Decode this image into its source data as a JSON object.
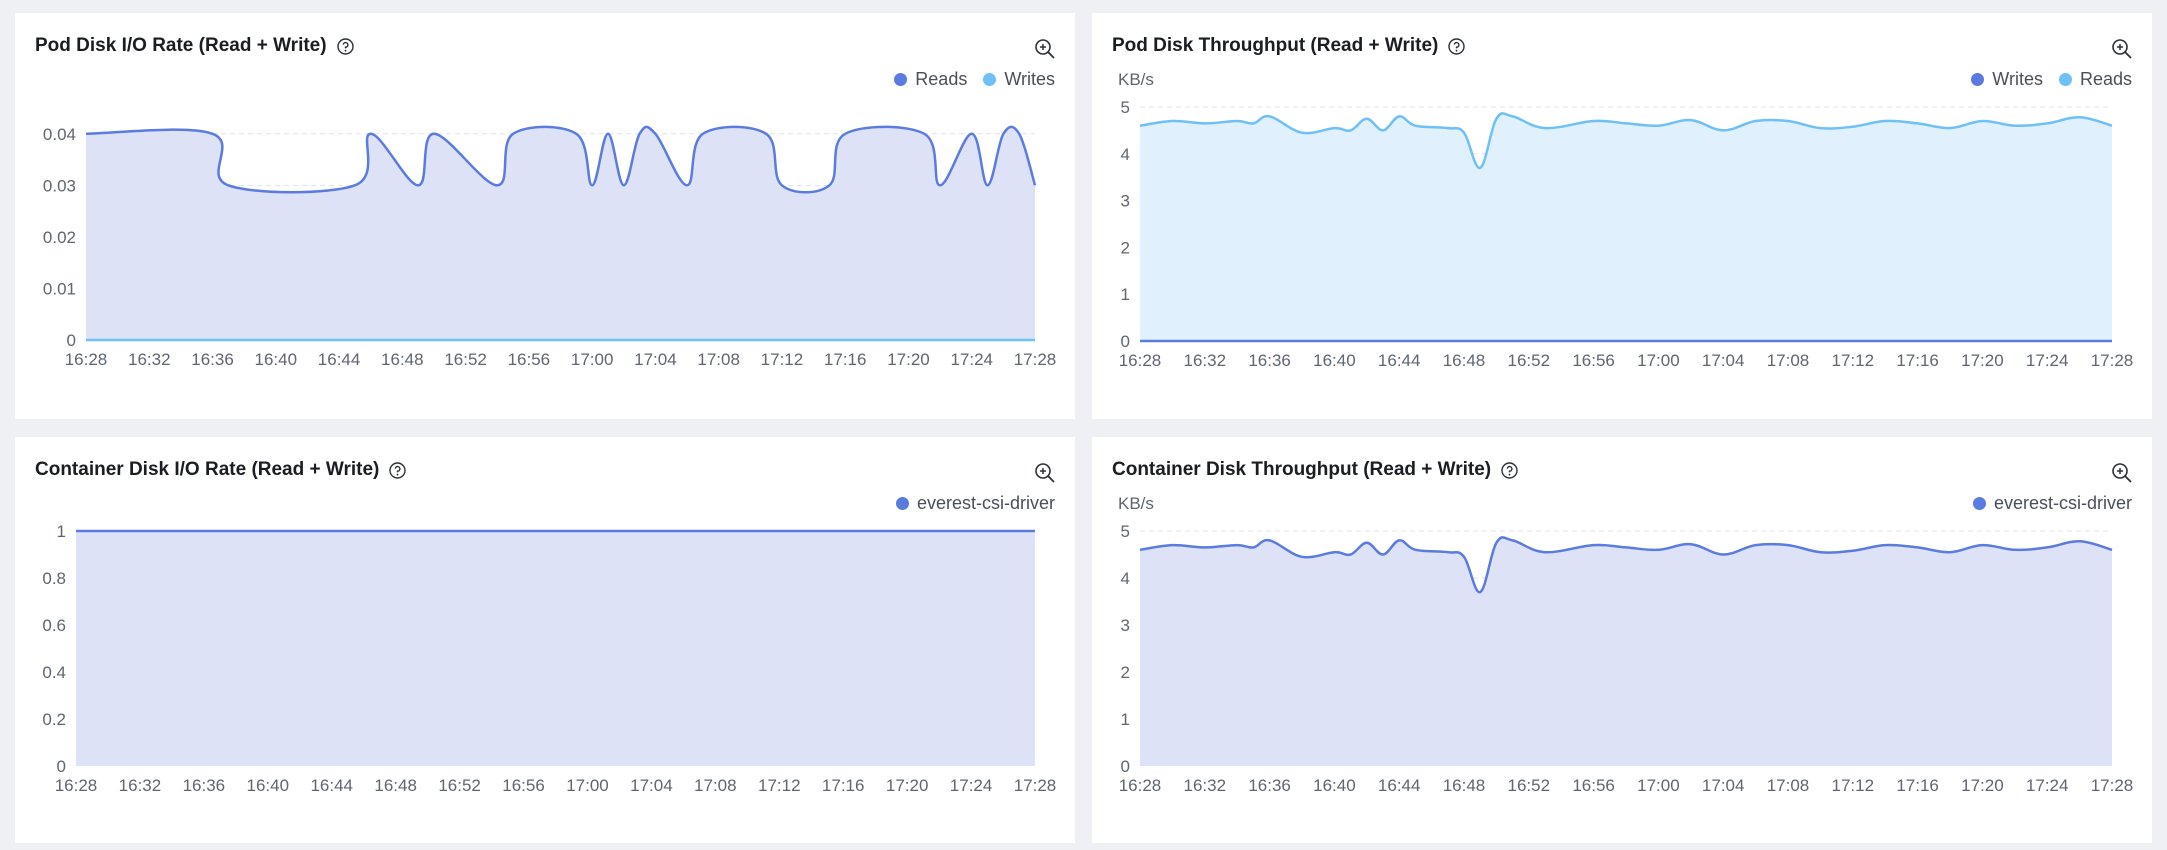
{
  "colors": {
    "reads_line": "#5b7be0",
    "reads_fill": "#dde2f7",
    "writes_line": "#6ec0f6",
    "writes_fill": "#e0f0fd",
    "grid": "#dfe3ea",
    "axis_text": "#5f6670"
  },
  "icons": {
    "help": "question-circle-icon",
    "zoom": "zoom-in-icon",
    "legend": "legend-dot-icon"
  },
  "time_labels": [
    "16:28",
    "16:32",
    "16:36",
    "16:40",
    "16:44",
    "16:48",
    "16:52",
    "16:56",
    "17:00",
    "17:04",
    "17:08",
    "17:12",
    "17:16",
    "17:20",
    "17:24",
    "17:28"
  ],
  "panels": [
    {
      "title": "Pod Disk I/O Rate (Read + Write)",
      "unit": "",
      "legend": [
        {
          "label": "Reads",
          "color": "#5b7be0"
        },
        {
          "label": "Writes",
          "color": "#6ec0f6"
        }
      ]
    },
    {
      "title": "Pod Disk Throughput (Read + Write)",
      "unit": "KB/s",
      "legend": [
        {
          "label": "Writes",
          "color": "#5b7be0"
        },
        {
          "label": "Reads",
          "color": "#6ec0f6"
        }
      ]
    },
    {
      "title": "Container Disk I/O Rate (Read + Write)",
      "unit": "",
      "legend": [
        {
          "label": "everest-csi-driver",
          "color": "#5b7be0"
        }
      ]
    },
    {
      "title": "Container Disk Throughput (Read + Write)",
      "unit": "KB/s",
      "legend": [
        {
          "label": "everest-csi-driver",
          "color": "#5b7be0"
        }
      ]
    }
  ],
  "chart_data": [
    {
      "type": "area",
      "title": "Pod Disk I/O Rate (Read + Write)",
      "x": [
        "16:28",
        "16:36",
        "16:37",
        "16:45",
        "16:46",
        "16:49",
        "16:50",
        "16:54",
        "16:55",
        "16:59",
        "17:00",
        "17:01",
        "17:02",
        "17:03",
        "17:04",
        "17:06",
        "17:07",
        "17:11",
        "17:12",
        "17:15",
        "17:16",
        "17:21",
        "17:22",
        "17:24",
        "17:25",
        "17:26",
        "17:27",
        "17:28"
      ],
      "yticks": [
        "0",
        "0.01",
        "0.02",
        "0.03",
        "0.04"
      ],
      "ylim": [
        0,
        0.045
      ],
      "series": [
        {
          "name": "Reads",
          "values": [
            0.04,
            0.04,
            0.03,
            0.03,
            0.04,
            0.03,
            0.04,
            0.03,
            0.04,
            0.04,
            0.03,
            0.04,
            0.03,
            0.04,
            0.04,
            0.03,
            0.04,
            0.04,
            0.03,
            0.03,
            0.04,
            0.04,
            0.03,
            0.04,
            0.03,
            0.04,
            0.04,
            0.03
          ]
        },
        {
          "name": "Writes",
          "values": [
            0,
            0,
            0,
            0,
            0,
            0,
            0,
            0,
            0,
            0,
            0,
            0,
            0,
            0,
            0,
            0,
            0,
            0,
            0,
            0,
            0,
            0,
            0,
            0,
            0,
            0,
            0,
            0
          ]
        }
      ]
    },
    {
      "type": "area",
      "title": "Pod Disk Throughput (Read + Write)",
      "ylabel": "KB/s",
      "x": [
        "16:28",
        "16:30",
        "16:32",
        "16:34",
        "16:35",
        "16:36",
        "16:38",
        "16:40",
        "16:41",
        "16:42",
        "16:43",
        "16:44",
        "16:45",
        "16:47",
        "16:48",
        "16:49",
        "16:50",
        "16:51",
        "16:53",
        "16:56",
        "16:58",
        "17:00",
        "17:02",
        "17:04",
        "17:06",
        "17:08",
        "17:10",
        "17:12",
        "17:14",
        "17:16",
        "17:18",
        "17:20",
        "17:22",
        "17:24",
        "17:26",
        "17:28"
      ],
      "yticks": [
        "0",
        "1",
        "2",
        "3",
        "4",
        "5"
      ],
      "ylim": [
        0,
        5
      ],
      "series": [
        {
          "name": "Writes",
          "values": [
            0,
            0,
            0,
            0,
            0,
            0,
            0,
            0,
            0,
            0,
            0,
            0,
            0,
            0,
            0,
            0,
            0,
            0,
            0,
            0,
            0,
            0,
            0,
            0,
            0,
            0,
            0,
            0,
            0,
            0,
            0,
            0,
            0,
            0,
            0,
            0
          ]
        },
        {
          "name": "Reads",
          "values": [
            4.6,
            4.7,
            4.65,
            4.7,
            4.65,
            4.8,
            4.45,
            4.55,
            4.5,
            4.75,
            4.5,
            4.8,
            4.6,
            4.55,
            4.45,
            3.7,
            4.75,
            4.8,
            4.55,
            4.7,
            4.65,
            4.6,
            4.72,
            4.5,
            4.7,
            4.7,
            4.55,
            4.58,
            4.7,
            4.65,
            4.55,
            4.7,
            4.6,
            4.65,
            4.78,
            4.6
          ]
        }
      ]
    },
    {
      "type": "area",
      "title": "Container Disk I/O Rate (Read + Write)",
      "x": [
        "16:28",
        "17:28"
      ],
      "yticks": [
        "0",
        "0.2",
        "0.4",
        "0.6",
        "0.8",
        "1"
      ],
      "ylim": [
        0,
        1
      ],
      "series": [
        {
          "name": "everest-csi-driver",
          "values": [
            1,
            1
          ]
        }
      ]
    },
    {
      "type": "area",
      "title": "Container Disk Throughput (Read + Write)",
      "ylabel": "KB/s",
      "x": [
        "16:28",
        "16:30",
        "16:32",
        "16:34",
        "16:35",
        "16:36",
        "16:38",
        "16:40",
        "16:41",
        "16:42",
        "16:43",
        "16:44",
        "16:45",
        "16:47",
        "16:48",
        "16:49",
        "16:50",
        "16:51",
        "16:53",
        "16:56",
        "16:58",
        "17:00",
        "17:02",
        "17:04",
        "17:06",
        "17:08",
        "17:10",
        "17:12",
        "17:14",
        "17:16",
        "17:18",
        "17:20",
        "17:22",
        "17:24",
        "17:26",
        "17:28"
      ],
      "yticks": [
        "0",
        "1",
        "2",
        "3",
        "4",
        "5"
      ],
      "ylim": [
        0,
        5
      ],
      "series": [
        {
          "name": "everest-csi-driver",
          "values": [
            4.6,
            4.7,
            4.65,
            4.7,
            4.65,
            4.8,
            4.45,
            4.55,
            4.5,
            4.75,
            4.5,
            4.8,
            4.6,
            4.55,
            4.45,
            3.7,
            4.75,
            4.8,
            4.55,
            4.7,
            4.65,
            4.6,
            4.72,
            4.5,
            4.7,
            4.7,
            4.55,
            4.58,
            4.7,
            4.65,
            4.55,
            4.7,
            4.6,
            4.65,
            4.78,
            4.6
          ]
        }
      ]
    }
  ]
}
